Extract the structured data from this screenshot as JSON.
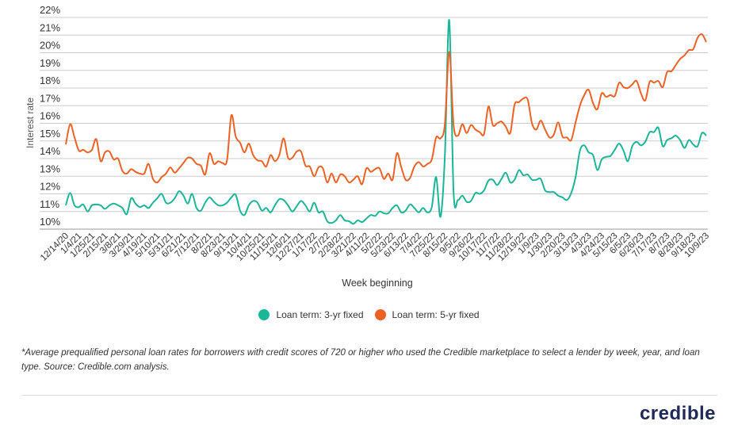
{
  "colors": {
    "series_3yr": "#1bb597",
    "series_5yr": "#ee6124",
    "grid": "#cccccc",
    "text": "#333333",
    "logo": "#1f2a5a"
  },
  "chart_data": {
    "type": "line",
    "xlabel": "Week beginning",
    "ylabel": "Interest rate",
    "ylim": [
      10,
      22
    ],
    "yticks": [
      "10%",
      "11%",
      "12%",
      "13%",
      "14%",
      "15%",
      "16%",
      "17%",
      "18%",
      "19%",
      "20%",
      "21%",
      "22%"
    ],
    "grid": true,
    "legend_position": "bottom",
    "x_frequency": "weekly",
    "xtick_every_weeks": 3,
    "xticks": [
      "12/14/20",
      "1/4/21",
      "1/25/21",
      "2/15/21",
      "3/8/21",
      "3/29/21",
      "4/19/21",
      "5/10/21",
      "5/31/21",
      "6/21/21",
      "7/12/21",
      "8/2/21",
      "8/23/21",
      "9/13/21",
      "10/4/21",
      "10/25/21",
      "11/15/21",
      "12/6/21",
      "12/27/21",
      "1/17/22",
      "2/7/22",
      "2/28/22",
      "3/21/22",
      "4/11/22",
      "5/2/22",
      "5/23/22",
      "6/13/22",
      "7/4/22",
      "7/25/22",
      "8/15/22",
      "9/5/22",
      "9/26/22",
      "10/17/22",
      "11/7/22",
      "11/28/22",
      "12/19/22",
      "1/9/23",
      "1/30/23",
      "2/20/23",
      "3/13/23",
      "4/3/23",
      "4/24/23",
      "5/15/23",
      "6/5/23",
      "6/26/23",
      "7/17/23",
      "8/7/23",
      "8/28/23",
      "9/18/23",
      "10/9/23"
    ],
    "series": [
      {
        "name": "Loan term: 3-yr fixed",
        "values": [
          11.35,
          12.05,
          11.35,
          11.25,
          11.4,
          11.0,
          11.35,
          11.4,
          11.35,
          11.15,
          11.35,
          11.45,
          11.35,
          11.2,
          10.85,
          11.75,
          11.45,
          11.25,
          11.35,
          11.2,
          11.5,
          11.75,
          12.0,
          11.5,
          11.5,
          11.75,
          12.15,
          11.9,
          11.45,
          12.0,
          11.2,
          11.05,
          11.5,
          11.8,
          11.55,
          11.35,
          11.35,
          11.5,
          11.8,
          11.95,
          11.05,
          10.8,
          11.35,
          11.6,
          11.5,
          11.05,
          11.2,
          10.95,
          11.35,
          11.7,
          11.65,
          11.35,
          11.0,
          11.3,
          11.6,
          11.35,
          11.0,
          11.5,
          10.95,
          11.0,
          10.45,
          10.35,
          10.5,
          10.8,
          10.5,
          10.45,
          10.3,
          10.5,
          10.4,
          10.6,
          10.8,
          10.75,
          11.0,
          10.9,
          10.9,
          11.2,
          11.35,
          10.95,
          11.05,
          11.4,
          11.2,
          10.95,
          11.2,
          10.95,
          11.25,
          12.95,
          10.7,
          14.15,
          21.85,
          12.1,
          11.65,
          11.9,
          11.55,
          11.6,
          12.05,
          12.0,
          12.2,
          12.75,
          12.8,
          12.5,
          12.85,
          13.2,
          12.65,
          12.8,
          13.35,
          13.05,
          13.1,
          12.8,
          12.8,
          12.85,
          12.2,
          12.1,
          12.1,
          11.9,
          11.8,
          11.65,
          12.05,
          12.95,
          14.45,
          14.75,
          14.35,
          14.2,
          13.35,
          13.95,
          14.1,
          14.15,
          14.5,
          14.85,
          14.45,
          13.85,
          14.7,
          14.95,
          14.75,
          14.95,
          15.5,
          15.5,
          15.75,
          14.7,
          15.05,
          15.15,
          15.3,
          15.05,
          14.6,
          15.05,
          14.8,
          14.7,
          15.45,
          15.3
        ]
      },
      {
        "name": "Loan term: 5-yr fixed",
        "values": [
          14.8,
          15.95,
          15.2,
          14.45,
          14.5,
          14.35,
          14.5,
          15.1,
          13.85,
          14.35,
          14.4,
          13.95,
          14.0,
          13.3,
          13.15,
          13.4,
          13.25,
          13.15,
          13.15,
          13.7,
          12.85,
          12.65,
          12.95,
          13.15,
          13.5,
          13.2,
          13.45,
          13.75,
          14.05,
          14.0,
          13.7,
          13.6,
          13.1,
          14.3,
          13.7,
          13.85,
          13.75,
          13.9,
          16.45,
          15.25,
          14.9,
          14.35,
          14.85,
          14.2,
          13.9,
          13.85,
          13.55,
          14.2,
          13.85,
          14.2,
          15.15,
          14.05,
          14.05,
          14.4,
          14.4,
          13.6,
          13.55,
          13.0,
          13.5,
          13.45,
          12.65,
          13.15,
          12.65,
          13.1,
          13.0,
          12.65,
          12.8,
          13.0,
          12.55,
          13.45,
          13.25,
          13.4,
          13.45,
          12.85,
          13.15,
          12.8,
          14.3,
          13.5,
          12.8,
          12.9,
          13.55,
          13.8,
          13.55,
          13.7,
          13.95,
          15.2,
          15.15,
          15.95,
          20.05,
          15.9,
          15.3,
          15.95,
          15.45,
          15.9,
          15.65,
          15.5,
          15.4,
          16.95,
          15.9,
          16.0,
          16.1,
          15.8,
          15.45,
          17.05,
          17.2,
          17.4,
          17.35,
          16.0,
          15.65,
          16.15,
          15.65,
          15.2,
          15.35,
          16.05,
          15.25,
          15.2,
          15.05,
          16.05,
          17.0,
          17.6,
          17.9,
          17.15,
          16.8,
          17.7,
          17.5,
          17.6,
          17.55,
          18.3,
          18.05,
          18.0,
          18.2,
          18.4,
          17.7,
          17.3,
          18.35,
          18.3,
          18.4,
          18.05,
          18.9,
          18.95,
          19.3,
          19.65,
          19.85,
          20.15,
          20.2,
          20.85,
          21.05,
          20.6
        ]
      }
    ]
  },
  "legend": [
    "Loan term: 3-yr fixed",
    "Loan term: 5-yr fixed"
  ],
  "footnote": "*Average prequalified personal loan rates for borrowers with credit scores of 720 or higher who used the Credible marketplace to select a lender by week, year, and loan type. Source: Credible.com analysis.",
  "logo_text": "credible"
}
